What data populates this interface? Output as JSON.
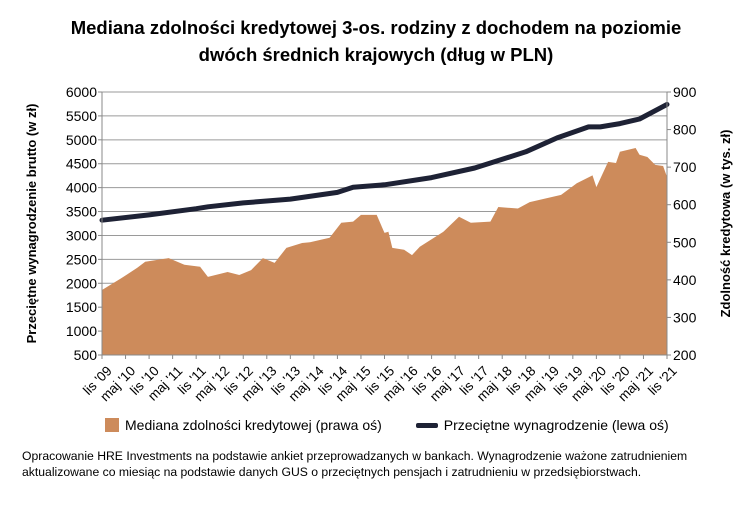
{
  "chart_data": {
    "type": "area+line",
    "title_lines": [
      "Mediana zdolności kredytowej 3-os. rodziny z dochodem na poziomie",
      "dwóch średnich krajowych (dług w PLN)"
    ],
    "ylabel_left": "Przeciętne wynagrodzenie brutto (w zł)",
    "ylabel_right": "Zdolność kredytowa (w tys. zł)",
    "ylim_left": [
      500,
      6000
    ],
    "yticks_left": [
      "500",
      "1000",
      "1500",
      "2000",
      "2500",
      "3000",
      "3500",
      "4000",
      "4500",
      "5000",
      "5500",
      "6000"
    ],
    "ylim_right": [
      200,
      900
    ],
    "yticks_right": [
      "200",
      "300",
      "400",
      "500",
      "600",
      "700",
      "800",
      "900"
    ],
    "xlim": [
      "2009-11",
      "2021-11"
    ],
    "xticks": [
      "lis '09",
      "maj '10",
      "lis '10",
      "maj '11",
      "lis '11",
      "maj '12",
      "lis '12",
      "maj '13",
      "lis '13",
      "maj '14",
      "lis '14",
      "maj '15",
      "lis '15",
      "maj '16",
      "lis '16",
      "maj '17",
      "lis '17",
      "maj '18",
      "lis '18",
      "maj '19",
      "lis '19",
      "maj '20",
      "lis '20",
      "maj '21",
      "lis '21"
    ],
    "grid": true,
    "legend_placement": "bottom",
    "series": [
      {
        "name": "Mediana zdolności kredytowej (prawa oś)",
        "type": "area",
        "axis": "right",
        "color": "#cd8b5b",
        "x": [
          "2009-11",
          "2010-04",
          "2010-08",
          "2010-10",
          "2011-04",
          "2011-08",
          "2011-12",
          "2012-02",
          "2012-07",
          "2012-10",
          "2013-01",
          "2013-04",
          "2013-07",
          "2013-10",
          "2014-02",
          "2014-04",
          "2014-09",
          "2014-12",
          "2015-03",
          "2015-05",
          "2015-09",
          "2015-11",
          "2015-12",
          "2016-01",
          "2016-04",
          "2016-06",
          "2016-08",
          "2017-02",
          "2017-06",
          "2017-09",
          "2018-02",
          "2018-04",
          "2018-09",
          "2018-12",
          "2019-08",
          "2019-12",
          "2020-04",
          "2020-05",
          "2020-08",
          "2020-10",
          "2020-11",
          "2021-03",
          "2021-04",
          "2021-06",
          "2021-08",
          "2021-10",
          "2021-11"
        ],
        "values": [
          373,
          405,
          432,
          448,
          458,
          440,
          435,
          408,
          421,
          413,
          426,
          458,
          445,
          485,
          498,
          500,
          512,
          552,
          555,
          573,
          573,
          525,
          528,
          485,
          480,
          466,
          488,
          528,
          568,
          552,
          555,
          594,
          590,
          607,
          626,
          657,
          678,
          647,
          714,
          711,
          741,
          751,
          733,
          727,
          706,
          703,
          674
        ]
      },
      {
        "name": "Przeciętne wynagrodzenie (lewa oś)",
        "type": "line",
        "axis": "left",
        "color": "#1e2235",
        "x": [
          "2009-11",
          "2010-11",
          "2011-11",
          "2012-02",
          "2012-11",
          "2013-11",
          "2014-11",
          "2015-03",
          "2015-11",
          "2016-11",
          "2017-10",
          "2018-11",
          "2019-07",
          "2020-03",
          "2020-06",
          "2020-11",
          "2021-04",
          "2021-11"
        ],
        "values": [
          3320,
          3430,
          3560,
          3600,
          3680,
          3760,
          3900,
          4010,
          4060,
          4210,
          4410,
          4750,
          5040,
          5270,
          5270,
          5340,
          5435,
          5740
        ]
      }
    ]
  },
  "footnote": "Opracowanie HRE Investments na podstawie ankiet przeprowadzanych w bankach. Wynagrodzenie ważone zatrudnieniem aktualizowane co miesiąc na podstawie danych GUS o przeciętnych pensjach i zatrudnieniu w przedsiębiorstwach."
}
